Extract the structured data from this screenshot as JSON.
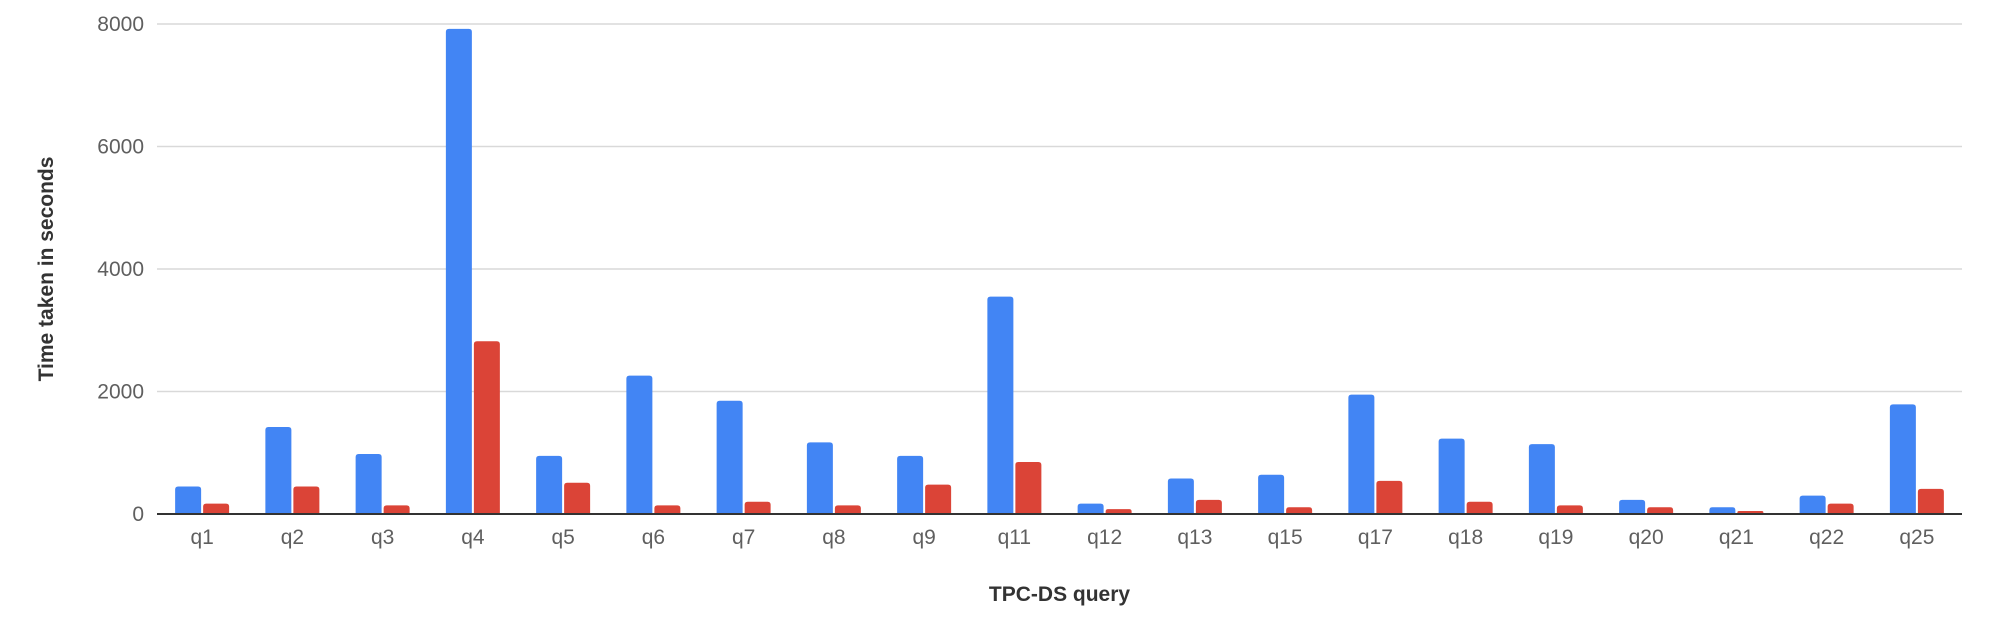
{
  "chart_data": {
    "type": "bar",
    "title": "",
    "xlabel": "TPC-DS query",
    "ylabel": "Time taken in seconds",
    "categories": [
      "q1",
      "q2",
      "q3",
      "q4",
      "q5",
      "q6",
      "q7",
      "q8",
      "q9",
      "q11",
      "q12",
      "q13",
      "q15",
      "q17",
      "q18",
      "q19",
      "q20",
      "q21",
      "q22",
      "q25"
    ],
    "series": [
      {
        "color": "#4285f4",
        "values": [
          450,
          1420,
          980,
          7920,
          950,
          2260,
          1850,
          1170,
          950,
          3550,
          170,
          580,
          640,
          1950,
          1230,
          1140,
          230,
          110,
          300,
          1790
        ]
      },
      {
        "color": "#db4437",
        "values": [
          170,
          450,
          140,
          2820,
          510,
          140,
          200,
          140,
          480,
          850,
          80,
          230,
          110,
          540,
          200,
          140,
          110,
          50,
          170,
          410
        ]
      }
    ],
    "ylim": [
      0,
      8000
    ],
    "yticks": [
      "0",
      "2000",
      "4000",
      "6000",
      "8000"
    ],
    "grid": true,
    "legend": "none"
  }
}
